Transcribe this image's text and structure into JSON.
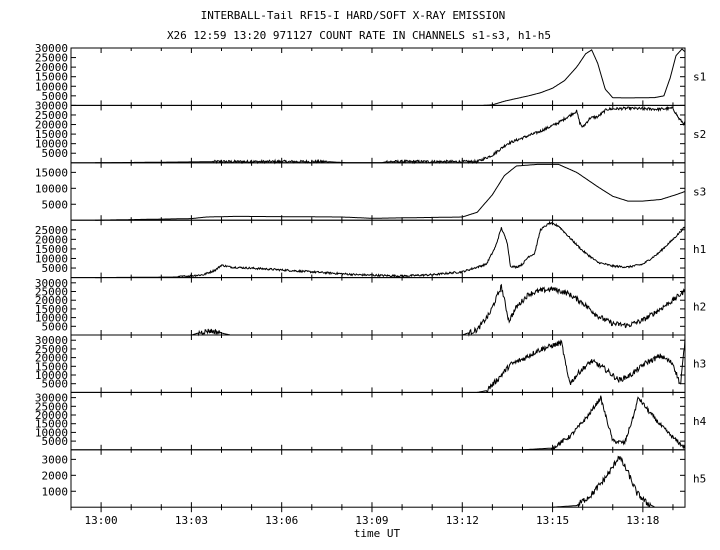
{
  "chart_data": {
    "type": "line",
    "title": "INTERBALL-Tail RF15-I HARD/SOFT X-RAY EMISSION",
    "subtitle": "X26  12:59 13:20 971127  COUNT RATE IN CHANNELS s1-s3, h1-h5",
    "xlabel": "time UT",
    "x_ticks": [
      {
        "label": "13:00",
        "min": 0
      },
      {
        "label": "13:03",
        "min": 3
      },
      {
        "label": "13:06",
        "min": 6
      },
      {
        "label": "13:09",
        "min": 9
      },
      {
        "label": "13:12",
        "min": 12
      },
      {
        "label": "13:15",
        "min": 15
      },
      {
        "label": "13:18",
        "min": 18
      }
    ],
    "xlim_min": [
      -1,
      19.4
    ],
    "grid": false,
    "panels": [
      {
        "name": "s1",
        "ylim": [
          0,
          30000
        ],
        "yticks": [
          {
            "v": 30000,
            "l": "30000"
          },
          {
            "v": 25000,
            "l": "25000"
          },
          {
            "v": 20000,
            "l": "20000"
          },
          {
            "v": 15000,
            "l": "15000"
          },
          {
            "v": 10000,
            "l": "10000"
          },
          {
            "v": 5000,
            "l": "5000"
          }
        ],
        "points": [
          [
            12.7,
            0
          ],
          [
            13.0,
            300
          ],
          [
            13.4,
            2200
          ],
          [
            13.8,
            3600
          ],
          [
            14.2,
            5000
          ],
          [
            14.6,
            6600
          ],
          [
            15.0,
            9000
          ],
          [
            15.4,
            13000
          ],
          [
            15.8,
            20000
          ],
          [
            16.1,
            27000
          ],
          [
            16.3,
            29000
          ],
          [
            16.5,
            22000
          ],
          [
            16.75,
            8500
          ],
          [
            17.0,
            4000
          ],
          [
            17.5,
            3900
          ],
          [
            18.0,
            4000
          ],
          [
            18.4,
            4100
          ],
          [
            18.7,
            5000
          ],
          [
            18.9,
            14000
          ],
          [
            19.1,
            26000
          ],
          [
            19.3,
            29500
          ],
          [
            19.4,
            28000
          ]
        ],
        "noise": 0
      },
      {
        "name": "s2",
        "ylim": [
          0,
          30000
        ],
        "yticks": [
          {
            "v": 30000,
            "l": "30000"
          },
          {
            "v": 25000,
            "l": "25000"
          },
          {
            "v": 20000,
            "l": "20000"
          },
          {
            "v": 15000,
            "l": "15000"
          },
          {
            "v": 10000,
            "l": "10000"
          },
          {
            "v": 5000,
            "l": "5000"
          }
        ],
        "points": [
          [
            -0.2,
            0
          ],
          [
            4.0,
            600
          ],
          [
            7.5,
            600
          ],
          [
            8.2,
            0
          ],
          [
            9.3,
            0
          ],
          [
            9.5,
            600
          ],
          [
            12.5,
            600
          ],
          [
            13.0,
            4000
          ],
          [
            13.5,
            10000
          ],
          [
            14.0,
            13000
          ],
          [
            14.6,
            16500
          ],
          [
            15.2,
            21000
          ],
          [
            15.8,
            27000
          ],
          [
            15.9,
            21000
          ],
          [
            16.0,
            18500
          ],
          [
            16.25,
            23500
          ],
          [
            16.5,
            24000
          ],
          [
            16.8,
            28000
          ],
          [
            17.5,
            28500
          ],
          [
            18.5,
            28000
          ],
          [
            19.0,
            28500
          ],
          [
            19.2,
            23000
          ],
          [
            19.4,
            20000
          ]
        ],
        "noise": 700
      },
      {
        "name": "s3",
        "ylim": [
          0,
          18000
        ],
        "yticks": [
          {
            "v": 15000,
            "l": "15000"
          },
          {
            "v": 10000,
            "l": "10000"
          },
          {
            "v": 5000,
            "l": "5000"
          }
        ],
        "points": [
          [
            -0.2,
            0
          ],
          [
            3.0,
            500
          ],
          [
            3.5,
            1000
          ],
          [
            4.5,
            1200
          ],
          [
            8.0,
            1000
          ],
          [
            9.0,
            600
          ],
          [
            12.0,
            1000
          ],
          [
            12.5,
            2500
          ],
          [
            13.0,
            8000
          ],
          [
            13.4,
            14000
          ],
          [
            13.8,
            17000
          ],
          [
            14.5,
            17500
          ],
          [
            15.2,
            17500
          ],
          [
            15.8,
            15000
          ],
          [
            16.5,
            10500
          ],
          [
            17.0,
            7500
          ],
          [
            17.5,
            6000
          ],
          [
            18.0,
            6000
          ],
          [
            18.6,
            6500
          ],
          [
            19.1,
            8000
          ],
          [
            19.4,
            9000
          ]
        ],
        "noise": 0
      },
      {
        "name": "h1",
        "ylim": [
          0,
          30000
        ],
        "yticks": [
          {
            "v": 25000,
            "l": "25000"
          },
          {
            "v": 20000,
            "l": "20000"
          },
          {
            "v": 15000,
            "l": "15000"
          },
          {
            "v": 10000,
            "l": "10000"
          },
          {
            "v": 5000,
            "l": "5000"
          }
        ],
        "points": [
          [
            -0.2,
            0
          ],
          [
            2.5,
            300
          ],
          [
            3.4,
            1500
          ],
          [
            3.8,
            4000
          ],
          [
            4.0,
            6500
          ],
          [
            4.3,
            5500
          ],
          [
            5.5,
            4500
          ],
          [
            7.0,
            3000
          ],
          [
            8.5,
            1500
          ],
          [
            10.0,
            800
          ],
          [
            11.0,
            1500
          ],
          [
            12.0,
            3000
          ],
          [
            12.5,
            5500
          ],
          [
            12.8,
            7000
          ],
          [
            13.1,
            16000
          ],
          [
            13.3,
            26000
          ],
          [
            13.5,
            18000
          ],
          [
            13.6,
            6000
          ],
          [
            13.8,
            5500
          ],
          [
            14.0,
            7000
          ],
          [
            14.2,
            11000
          ],
          [
            14.4,
            12500
          ],
          [
            14.6,
            25000
          ],
          [
            14.9,
            28500
          ],
          [
            15.2,
            27000
          ],
          [
            15.5,
            22000
          ],
          [
            16.0,
            14000
          ],
          [
            16.5,
            8000
          ],
          [
            17.0,
            6000
          ],
          [
            17.5,
            5500
          ],
          [
            18.0,
            7000
          ],
          [
            18.5,
            12500
          ],
          [
            19.0,
            20000
          ],
          [
            19.4,
            26500
          ]
        ],
        "noise": 500
      },
      {
        "name": "h2",
        "ylim": [
          0,
          33000
        ],
        "yticks": [
          {
            "v": 30000,
            "l": "30000"
          },
          {
            "v": 25000,
            "l": "25000"
          },
          {
            "v": 20000,
            "l": "20000"
          },
          {
            "v": 15000,
            "l": "15000"
          },
          {
            "v": 10000,
            "l": "10000"
          },
          {
            "v": 5000,
            "l": "5000"
          }
        ],
        "points": [
          [
            -0.2,
            0
          ],
          [
            3.0,
            0
          ],
          [
            3.3,
            1500
          ],
          [
            3.6,
            2500
          ],
          [
            3.9,
            1500
          ],
          [
            4.3,
            0
          ],
          [
            12.0,
            0
          ],
          [
            12.5,
            3000
          ],
          [
            12.9,
            12000
          ],
          [
            13.3,
            28000
          ],
          [
            13.55,
            8000
          ],
          [
            13.8,
            16000
          ],
          [
            14.2,
            23500
          ],
          [
            14.6,
            25500
          ],
          [
            15.0,
            26500
          ],
          [
            15.5,
            24000
          ],
          [
            16.0,
            18500
          ],
          [
            16.5,
            11000
          ],
          [
            17.0,
            6500
          ],
          [
            17.5,
            5500
          ],
          [
            18.0,
            8500
          ],
          [
            18.5,
            14000
          ],
          [
            19.0,
            20000
          ],
          [
            19.4,
            25500
          ]
        ],
        "noise": 1500
      },
      {
        "name": "h3",
        "ylim": [
          0,
          33000
        ],
        "yticks": [
          {
            "v": 30000,
            "l": "30000"
          },
          {
            "v": 25000,
            "l": "25000"
          },
          {
            "v": 20000,
            "l": "20000"
          },
          {
            "v": 15000,
            "l": "15000"
          },
          {
            "v": 10000,
            "l": "10000"
          },
          {
            "v": 5000,
            "l": "5000"
          }
        ],
        "points": [
          [
            12.5,
            0
          ],
          [
            12.8,
            1000
          ],
          [
            13.2,
            8000
          ],
          [
            13.6,
            16000
          ],
          [
            14.0,
            19000
          ],
          [
            14.5,
            24000
          ],
          [
            15.0,
            27000
          ],
          [
            15.3,
            28500
          ],
          [
            15.5,
            10000
          ],
          [
            15.6,
            5500
          ],
          [
            15.9,
            12000
          ],
          [
            16.3,
            18000
          ],
          [
            16.7,
            14000
          ],
          [
            17.2,
            7000
          ],
          [
            17.6,
            10000
          ],
          [
            18.1,
            17000
          ],
          [
            18.6,
            21000
          ],
          [
            19.0,
            16500
          ],
          [
            19.25,
            4000
          ],
          [
            19.4,
            30000
          ]
        ],
        "noise": 1500
      },
      {
        "name": "h4",
        "ylim": [
          0,
          33000
        ],
        "yticks": [
          {
            "v": 30000,
            "l": "30000"
          },
          {
            "v": 25000,
            "l": "25000"
          },
          {
            "v": 20000,
            "l": "20000"
          },
          {
            "v": 15000,
            "l": "15000"
          },
          {
            "v": 10000,
            "l": "10000"
          },
          {
            "v": 5000,
            "l": "5000"
          }
        ],
        "points": [
          [
            14.0,
            0
          ],
          [
            15.0,
            1000
          ],
          [
            15.6,
            8000
          ],
          [
            16.2,
            20000
          ],
          [
            16.6,
            30000
          ],
          [
            17.0,
            5000
          ],
          [
            17.4,
            4000
          ],
          [
            17.7,
            20000
          ],
          [
            17.85,
            30000
          ],
          [
            18.2,
            22000
          ],
          [
            18.6,
            14000
          ],
          [
            19.0,
            7000
          ],
          [
            19.3,
            2500
          ],
          [
            19.4,
            1500
          ]
        ],
        "noise": 1200
      },
      {
        "name": "h5",
        "ylim": [
          0,
          3600
        ],
        "yticks": [
          {
            "v": 3000,
            "l": "3000"
          },
          {
            "v": 2000,
            "l": "2000"
          },
          {
            "v": 1000,
            "l": "1000"
          }
        ],
        "points": [
          [
            15.0,
            0
          ],
          [
            15.8,
            100
          ],
          [
            16.3,
            800
          ],
          [
            16.7,
            1700
          ],
          [
            17.0,
            2500
          ],
          [
            17.2,
            3200
          ],
          [
            17.5,
            2200
          ],
          [
            17.8,
            900
          ],
          [
            18.1,
            300
          ],
          [
            18.4,
            0
          ]
        ],
        "noise": 200
      }
    ]
  }
}
